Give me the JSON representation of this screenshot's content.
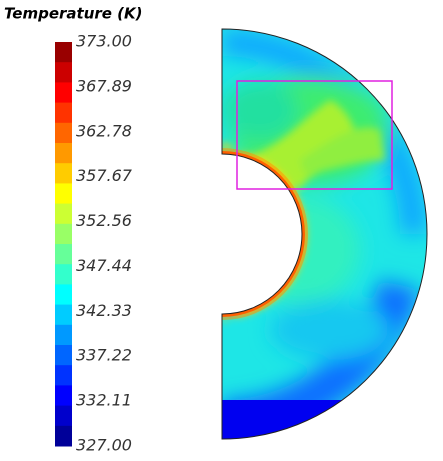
{
  "colorbar": {
    "title": "Temperature (K)",
    "labels": [
      "373.00",
      "367.89",
      "362.78",
      "357.67",
      "352.56",
      "347.44",
      "342.33",
      "337.22",
      "332.11",
      "327.00"
    ]
  }
}
